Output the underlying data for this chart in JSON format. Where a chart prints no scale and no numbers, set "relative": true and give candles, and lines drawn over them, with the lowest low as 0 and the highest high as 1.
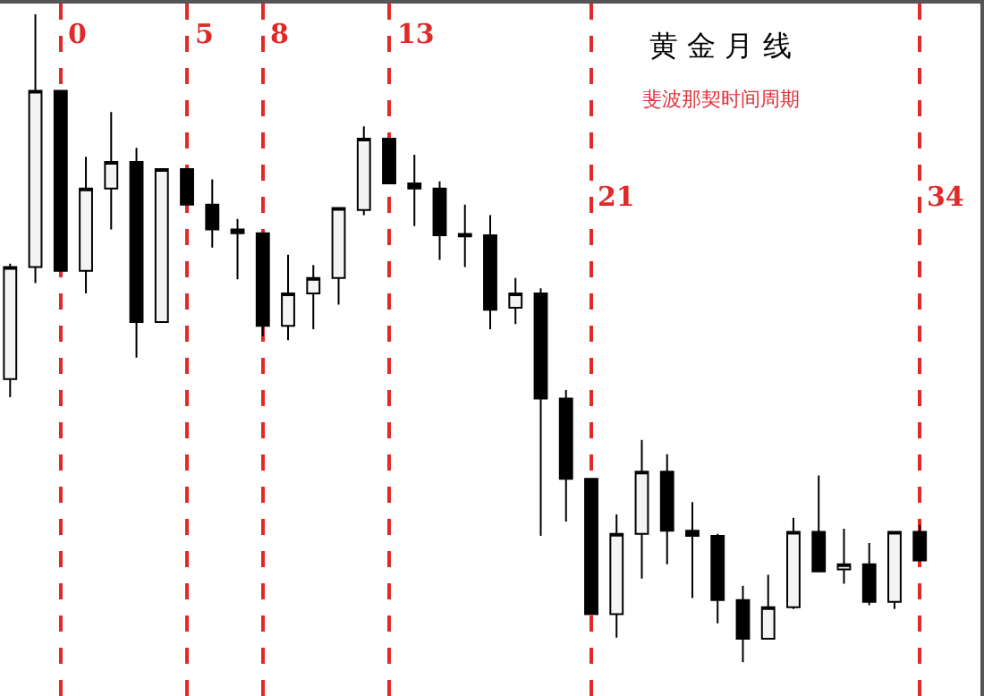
{
  "chart_data": {
    "type": "candlestick",
    "title": "黄 金 月 线",
    "subtitle": "斐波那契时间周期",
    "relative": true,
    "grid": "x",
    "categories": [
      null,
      null,
      null,
      null,
      null,
      null,
      null,
      null,
      null,
      null,
      null,
      null,
      null,
      null,
      null,
      null,
      null,
      null,
      null,
      null,
      null,
      null,
      null,
      null,
      null,
      null,
      null,
      null,
      null,
      null,
      null,
      null,
      null,
      null,
      null,
      null,
      null
    ],
    "annotations": [
      "0",
      "5",
      "8",
      "13",
      "21",
      "34"
    ],
    "ohlc": [
      [
        0.437,
        0.615,
        0.409,
        0.61
      ],
      [
        0.61,
        1.0,
        0.585,
        0.882
      ],
      [
        0.882,
        0.882,
        0.604,
        0.604
      ],
      [
        0.604,
        0.78,
        0.569,
        0.731
      ],
      [
        0.731,
        0.849,
        0.668,
        0.772
      ],
      [
        0.772,
        0.794,
        0.47,
        0.525
      ],
      [
        0.525,
        0.761,
        0.525,
        0.761
      ],
      [
        0.761,
        0.761,
        0.706,
        0.706
      ],
      [
        0.706,
        0.745,
        0.64,
        0.668
      ],
      [
        0.668,
        0.684,
        0.591,
        0.662
      ],
      [
        0.662,
        0.662,
        0.503,
        0.519
      ],
      [
        0.519,
        0.629,
        0.497,
        0.569
      ],
      [
        0.569,
        0.613,
        0.514,
        0.593
      ],
      [
        0.593,
        0.701,
        0.552,
        0.701
      ],
      [
        0.698,
        0.827,
        0.69,
        0.808
      ],
      [
        0.808,
        0.808,
        0.739,
        0.739
      ],
      [
        0.739,
        0.783,
        0.673,
        0.731
      ],
      [
        0.731,
        0.742,
        0.621,
        0.659
      ],
      [
        0.661,
        0.706,
        0.61,
        0.657
      ],
      [
        0.659,
        0.69,
        0.514,
        0.544
      ],
      [
        0.547,
        0.593,
        0.522,
        0.569
      ],
      [
        0.569,
        0.577,
        0.195,
        0.407
      ],
      [
        0.407,
        0.42,
        0.217,
        0.283
      ],
      [
        0.283,
        0.283,
        0.074,
        0.074
      ],
      [
        0.074,
        0.228,
        0.038,
        0.198
      ],
      [
        0.198,
        0.343,
        0.129,
        0.294
      ],
      [
        0.294,
        0.321,
        0.151,
        0.203
      ],
      [
        0.203,
        0.247,
        0.099,
        0.195
      ],
      [
        0.195,
        0.198,
        0.06,
        0.096
      ],
      [
        0.096,
        0.118,
        0.0,
        0.036
      ],
      [
        0.036,
        0.135,
        0.036,
        0.085
      ],
      [
        0.085,
        0.223,
        0.082,
        0.201
      ],
      [
        0.201,
        0.288,
        0.14,
        0.14
      ],
      [
        0.143,
        0.206,
        0.121,
        0.151
      ],
      [
        0.151,
        0.184,
        0.088,
        0.093
      ],
      [
        0.093,
        0.201,
        0.082,
        0.201
      ],
      [
        0.201,
        0.212,
        0.157,
        0.157
      ]
    ]
  }
}
